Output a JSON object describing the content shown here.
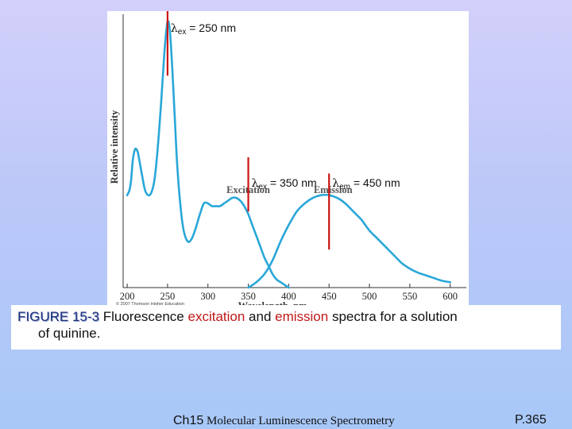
{
  "chart_data": {
    "type": "line",
    "xlabel": "Wavelength, nm",
    "ylabel": "Relative intensity",
    "x_ticks": [
      200,
      250,
      300,
      350,
      400,
      450,
      500,
      550,
      600
    ],
    "xlim": [
      195,
      620
    ],
    "ylim": [
      0,
      1
    ],
    "grid": false,
    "series": [
      {
        "name": "Excitation",
        "x": [
          200,
          203,
          205,
          207,
          210,
          213,
          215,
          218,
          222,
          226,
          230,
          234,
          238,
          242,
          246,
          249,
          251,
          253,
          256,
          259,
          262,
          266,
          270,
          275,
          280,
          285,
          290,
          295,
          300,
          305,
          310,
          315,
          320,
          325,
          330,
          335,
          340,
          345,
          350,
          355,
          360,
          365,
          370,
          375,
          380,
          385,
          390,
          395,
          400
        ],
        "y": [
          0.34,
          0.36,
          0.4,
          0.47,
          0.51,
          0.5,
          0.47,
          0.42,
          0.36,
          0.34,
          0.35,
          0.4,
          0.52,
          0.68,
          0.86,
          0.96,
          0.98,
          0.94,
          0.8,
          0.62,
          0.45,
          0.3,
          0.21,
          0.17,
          0.18,
          0.22,
          0.27,
          0.31,
          0.31,
          0.3,
          0.3,
          0.3,
          0.31,
          0.32,
          0.33,
          0.33,
          0.32,
          0.3,
          0.27,
          0.23,
          0.19,
          0.15,
          0.11,
          0.08,
          0.05,
          0.03,
          0.02,
          0.01,
          0.0
        ]
      },
      {
        "name": "Emission",
        "x": [
          350,
          360,
          370,
          380,
          390,
          400,
          410,
          420,
          430,
          440,
          450,
          460,
          470,
          480,
          490,
          500,
          510,
          520,
          530,
          540,
          550,
          560,
          570,
          580,
          590,
          600
        ],
        "y": [
          0.0,
          0.02,
          0.05,
          0.1,
          0.17,
          0.23,
          0.28,
          0.31,
          0.33,
          0.34,
          0.34,
          0.33,
          0.31,
          0.28,
          0.25,
          0.21,
          0.18,
          0.15,
          0.12,
          0.09,
          0.07,
          0.055,
          0.045,
          0.035,
          0.025,
          0.02
        ]
      }
    ],
    "series_labels": [
      {
        "text": "Excitation",
        "x": 350,
        "y": 0.36
      },
      {
        "text": "Emission",
        "x": 455,
        "y": 0.36
      }
    ],
    "annotations": [
      {
        "lambda": "λ",
        "sub": "ex",
        "text": " = 250 nm",
        "x": 250,
        "y": 1.0
      },
      {
        "lambda": "λ",
        "sub": "ex",
        "text": " = 350 nm",
        "x": 350,
        "y": 0.43
      },
      {
        "lambda": "λ",
        "sub": "em",
        "text": " = 450 nm",
        "x": 450,
        "y": 0.43
      }
    ],
    "marker_lines": [
      {
        "x": 250,
        "y_from": 0.78,
        "y_to": 1.06
      },
      {
        "x": 350,
        "y_from": 0.28,
        "y_to": 0.48
      },
      {
        "x": 450,
        "y_from": 0.14,
        "y_to": 0.42
      }
    ],
    "colors": {
      "curve": "#29a7d8",
      "marker": "#cc1414",
      "axis": "#333333"
    }
  },
  "copyright": "© 2007 Thomson Higher Education",
  "caption": {
    "figure_label": "FIGURE 15-3",
    "part1": " Fluorescence ",
    "word_excitation": "excitation",
    "part2": " and ",
    "word_emission": "emission",
    "part3": " spectra for a solution",
    "line2": "of quinine."
  },
  "footer": {
    "chapter": "Ch15",
    "title": " Molecular Luminescence Spectrometry",
    "page": "P.365"
  }
}
